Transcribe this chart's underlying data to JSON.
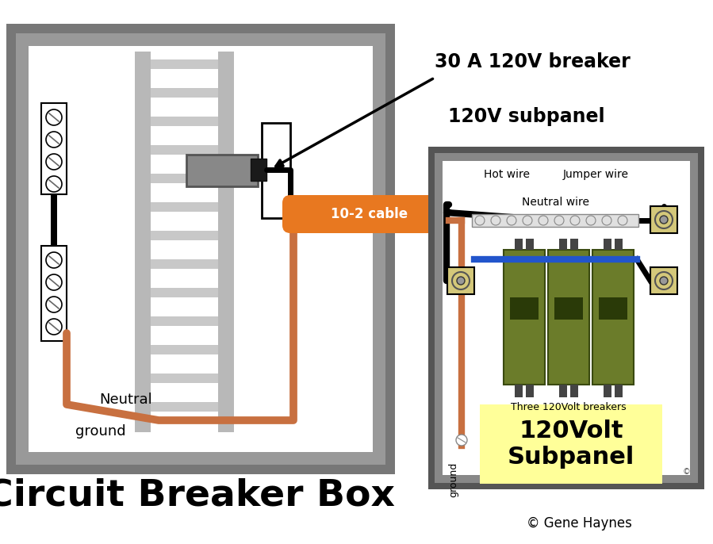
{
  "title": "Circuit Breaker Box",
  "subtitle_breaker": "30 A 120V breaker",
  "subtitle_subpanel": "120V subpanel",
  "cable_label": "10-2 cable",
  "neutral_label": "Neutral",
  "ground_label": "ground",
  "copyright": "© Gene Haynes",
  "hot_wire_label": "Hot wire",
  "jumper_wire_label": "Jumper wire",
  "neutral_wire_label": "Neutral wire",
  "ground_sub_label": "ground",
  "three_breakers_label": "Three 120Volt breakers",
  "subpanel_label": "120Volt\nSubpanel",
  "bg_color": "#ffffff",
  "outer_box_color": "#7a7a7a",
  "wire_black": "#111111",
  "wire_copper": "#c87040",
  "wire_orange": "#e87820",
  "wire_blue": "#2255cc",
  "subpanel_green": "#6b7c2a",
  "subpanel_yellow": "#ffff99"
}
